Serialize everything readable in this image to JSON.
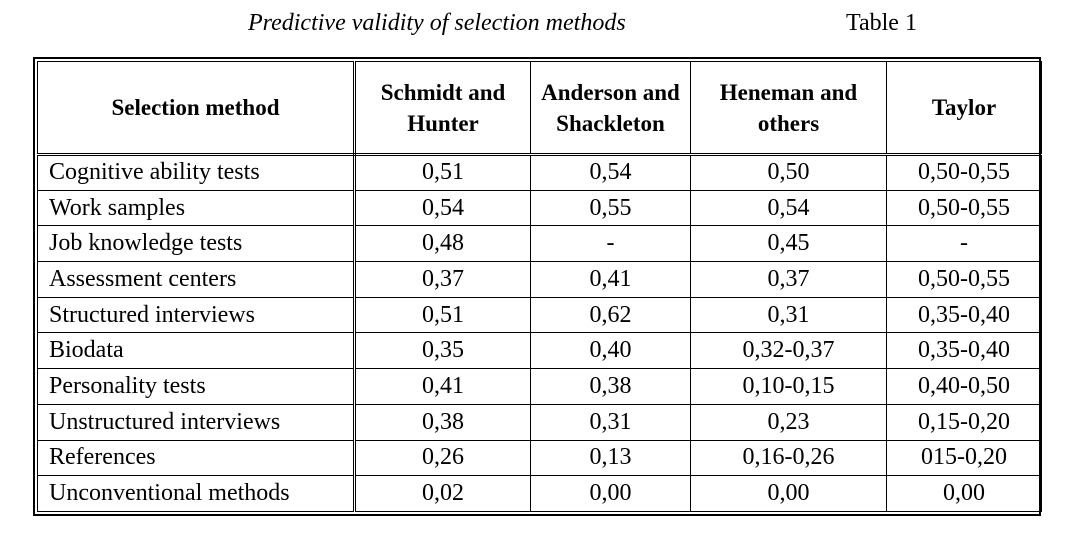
{
  "caption": {
    "title": "Predictive validity of selection methods",
    "number": "Table 1"
  },
  "table": {
    "headers": [
      "Selection method",
      "Schmidt and Hunter",
      "Anderson and Shackleton",
      "Heneman and others",
      "Taylor"
    ],
    "rows": [
      [
        "Cognitive ability tests",
        "0,51",
        "0,54",
        "0,50",
        "0,50-0,55"
      ],
      [
        "Work samples",
        "0,54",
        "0,55",
        "0,54",
        "0,50-0,55"
      ],
      [
        "Job knowledge tests",
        "0,48",
        "-",
        "0,45",
        "-"
      ],
      [
        "Assessment centers",
        "0,37",
        "0,41",
        "0,37",
        "0,50-0,55"
      ],
      [
        "Structured interviews",
        "0,51",
        "0,62",
        "0,31",
        "0,35-0,40"
      ],
      [
        "Biodata",
        "0,35",
        "0,40",
        "0,32-0,37",
        "0,35-0,40"
      ],
      [
        "Personality tests",
        "0,41",
        "0,38",
        "0,10-0,15",
        "0,40-0,50"
      ],
      [
        "Unstructured interviews",
        "0,38",
        "0,31",
        "0,23",
        "0,15-0,20"
      ],
      [
        "References",
        "0,26",
        "0,13",
        "0,16-0,26",
        "015-0,20"
      ],
      [
        "Unconventional methods",
        "0,02",
        "0,00",
        "0,00",
        "0,00"
      ]
    ]
  }
}
